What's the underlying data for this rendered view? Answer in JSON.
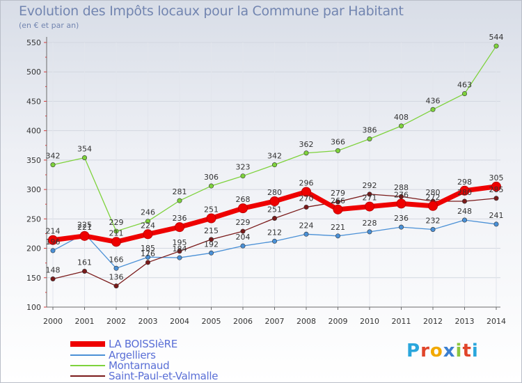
{
  "chart_data": {
    "type": "line",
    "title": "Evolution des Impôts locaux pour la Commune par Habitant",
    "subtitle": "(en € et par an)",
    "xlabel": "",
    "ylabel": "",
    "ylim": [
      100,
      550
    ],
    "yticks": [
      100,
      150,
      200,
      250,
      300,
      350,
      400,
      450,
      500,
      550
    ],
    "x": [
      2000,
      2001,
      2002,
      2003,
      2004,
      2005,
      2006,
      2007,
      2008,
      2009,
      2010,
      2011,
      2012,
      2013,
      2014
    ],
    "series": [
      {
        "name": "LA BOISSIèRE",
        "color": "#ee0000",
        "values": [
          214,
          221,
          211,
          224,
          236,
          251,
          268,
          280,
          296,
          266,
          271,
          276,
          272,
          298,
          305
        ]
      },
      {
        "name": "Argelliers",
        "color": "#4a90d6",
        "values": [
          196,
          225,
          166,
          185,
          184,
          192,
          204,
          212,
          224,
          221,
          228,
          236,
          232,
          248,
          241
        ]
      },
      {
        "name": "Montarnaud",
        "color": "#7ed23c",
        "values": [
          342,
          354,
          229,
          246,
          281,
          306,
          323,
          342,
          362,
          366,
          386,
          408,
          436,
          463,
          544
        ]
      },
      {
        "name": "Saint-Paul-et-Valmalle",
        "color": "#7a1a1a",
        "values": [
          148,
          161,
          136,
          176,
          195,
          215,
          229,
          251,
          270,
          279,
          292,
          288,
          280,
          280,
          285
        ]
      }
    ]
  },
  "legend": {
    "items": [
      {
        "label": "LA BOISSIèRE"
      },
      {
        "label": "Argelliers"
      },
      {
        "label": "Montarnaud"
      },
      {
        "label": "Saint-Paul-et-Valmalle"
      }
    ]
  },
  "logo": {
    "letters": [
      "P",
      "r",
      "o",
      "x",
      "i",
      "t",
      "i"
    ],
    "colors": [
      "#2aa6dc",
      "#e0452a",
      "#f2a900",
      "#3b7fd0",
      "#8cc63f",
      "#e0452a",
      "#2aa6dc"
    ]
  }
}
